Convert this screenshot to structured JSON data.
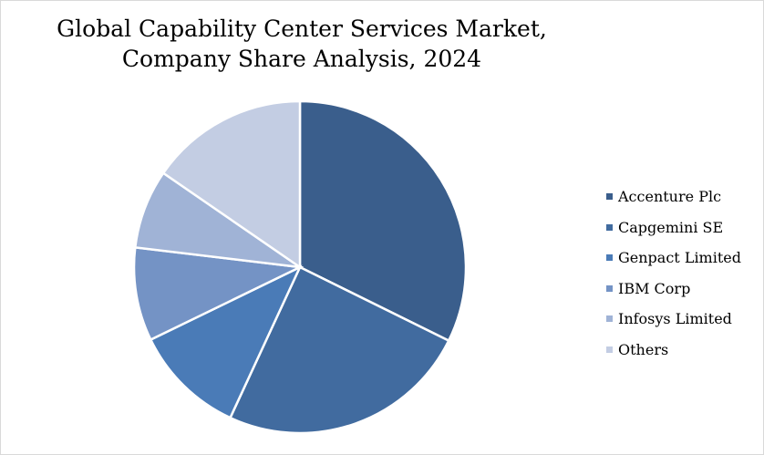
{
  "chart_data": {
    "type": "pie",
    "title_line1": "Global Capability Center Services Market,",
    "title_line2": "Company Share Analysis, 2024",
    "legend_position": "right",
    "start_angle": "12 o'clock, clockwise",
    "slices": [
      {
        "label": "Accenture Plc",
        "value": 32.3,
        "color": "#3a5e8c"
      },
      {
        "label": "Capgemini SE",
        "value": 24.6,
        "color": "#416b9f"
      },
      {
        "label": "Genpact Limited",
        "value": 10.9,
        "color": "#4a7bb7"
      },
      {
        "label": "IBM Corp",
        "value": 9.1,
        "color": "#7493c5"
      },
      {
        "label": "Infosys Limited",
        "value": 7.7,
        "color": "#a0b3d6"
      },
      {
        "label": "Others",
        "value": 15.4,
        "color": "#c3cde3"
      }
    ]
  }
}
